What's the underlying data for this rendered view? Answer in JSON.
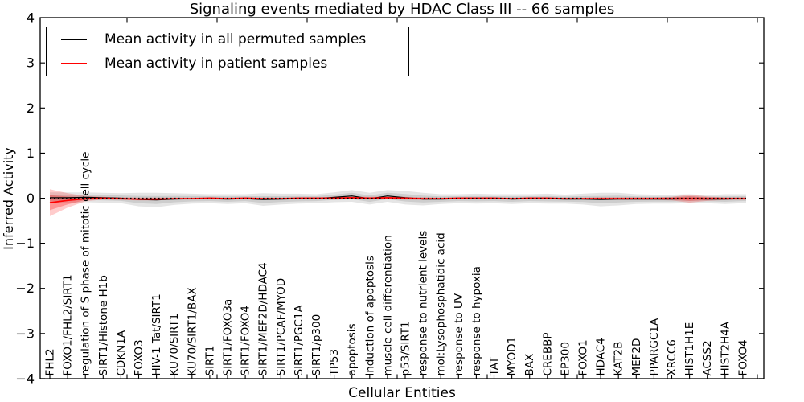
{
  "title": "Signaling events mediated by HDAC Class III -- 66 samples",
  "axes": {
    "ylabel": "Inferred Activity",
    "xlabel": "Cellular Entities",
    "y_tick_labels": [
      "4",
      "3",
      "2",
      "1",
      "0",
      "−1",
      "−2",
      "−3",
      "−4"
    ]
  },
  "legend": {
    "items": [
      {
        "label": "Mean activity in all permuted samples",
        "color": "#000000"
      },
      {
        "label": "Mean activity in patient samples",
        "color": "#ff0000"
      }
    ]
  },
  "colors": {
    "permuted_line": "#000000",
    "patient_line": "#ff0000",
    "permuted_band": "rgba(0,0,0,0.10)",
    "patient_band_outer": "rgba(255,0,0,0.20)",
    "patient_band_inner": "rgba(255,0,0,0.28)",
    "frame": "#000000"
  },
  "chart_data": {
    "type": "line",
    "title": "Signaling events mediated by HDAC Class III -- 66 samples",
    "xlabel": "Cellular Entities",
    "ylabel": "Inferred Activity",
    "n_samples": 66,
    "ylim": [
      -4,
      4
    ],
    "y_ticks": [
      4,
      3,
      2,
      1,
      0,
      -1,
      -2,
      -3,
      -4
    ],
    "grid": false,
    "legend_position": "upper left",
    "zero_reference_line": true,
    "band_meaning": "shaded region = mean ± std",
    "categories": [
      "FHL2",
      "FOXO1/FHL2/SIRT1",
      "regulation of S phase of mitotic cell cycle",
      "SIRT1/Histone H1b",
      "CDKN1A",
      "FOXO3",
      "HIV-1 Tat/SIRT1",
      "KU70/SIRT1",
      "KU70/SIRT1/BAX",
      "SIRT1",
      "SIRT1/FOXO3a",
      "SIRT1/FOXO4",
      "SIRT1/MEF2D/HDAC4",
      "SIRT1/PCAF/MYOD",
      "SIRT1/PGC1A",
      "SIRT1/p300",
      "TP53",
      "apoptosis",
      "induction of apoptosis",
      "muscle cell differentiation",
      "p53/SIRT1",
      "response to nutrient levels",
      "mol:Lysophosphatidic acid",
      "response to UV",
      "response to hypoxia",
      "TAT",
      "MYOD1",
      "BAX",
      "CREBBP",
      "EP300",
      "FOXO1",
      "HDAC4",
      "KAT2B",
      "MEF2D",
      "PPARGC1A",
      "XRCC6",
      "HIST1H1E",
      "ACSS2",
      "HIST2H4A",
      "FOXO4"
    ],
    "series": [
      {
        "name": "Mean activity in all permuted samples",
        "values": [
          0.01,
          0.01,
          0.02,
          0.01,
          0.0,
          -0.03,
          -0.04,
          -0.02,
          -0.01,
          -0.01,
          -0.02,
          -0.01,
          -0.03,
          -0.02,
          -0.01,
          -0.01,
          0.02,
          0.05,
          -0.01,
          0.05,
          0.01,
          -0.02,
          -0.02,
          -0.01,
          -0.01,
          -0.01,
          -0.02,
          -0.01,
          -0.01,
          -0.02,
          -0.02,
          -0.03,
          -0.02,
          -0.02,
          -0.02,
          -0.02,
          -0.01,
          -0.02,
          -0.02,
          -0.01
        ],
        "std": [
          0.12,
          0.12,
          0.11,
          0.11,
          0.11,
          0.15,
          0.16,
          0.13,
          0.11,
          0.1,
          0.11,
          0.1,
          0.14,
          0.12,
          0.11,
          0.1,
          0.11,
          0.13,
          0.13,
          0.13,
          0.15,
          0.14,
          0.11,
          0.1,
          0.11,
          0.1,
          0.11,
          0.1,
          0.11,
          0.1,
          0.12,
          0.15,
          0.14,
          0.11,
          0.1,
          0.1,
          0.1,
          0.09,
          0.11,
          0.1
        ]
      },
      {
        "name": "Mean activity in patient samples",
        "values": [
          -0.1,
          -0.05,
          -0.01,
          0.0,
          -0.01,
          -0.02,
          -0.02,
          -0.01,
          -0.01,
          0.0,
          -0.01,
          0.0,
          -0.01,
          -0.01,
          0.0,
          0.0,
          0.0,
          0.01,
          0.0,
          0.01,
          0.0,
          -0.01,
          -0.01,
          0.0,
          0.0,
          0.0,
          -0.01,
          0.0,
          0.0,
          -0.01,
          -0.01,
          -0.01,
          -0.01,
          -0.01,
          -0.01,
          -0.01,
          -0.01,
          -0.01,
          -0.01,
          -0.01
        ],
        "std": [
          0.3,
          0.16,
          0.06,
          0.03,
          0.03,
          0.03,
          0.03,
          0.02,
          0.02,
          0.02,
          0.02,
          0.02,
          0.02,
          0.02,
          0.02,
          0.02,
          0.03,
          0.03,
          0.03,
          0.03,
          0.03,
          0.03,
          0.02,
          0.02,
          0.02,
          0.02,
          0.02,
          0.02,
          0.02,
          0.02,
          0.02,
          0.03,
          0.03,
          0.03,
          0.03,
          0.04,
          0.09,
          0.05,
          0.03,
          0.03
        ]
      }
    ]
  }
}
